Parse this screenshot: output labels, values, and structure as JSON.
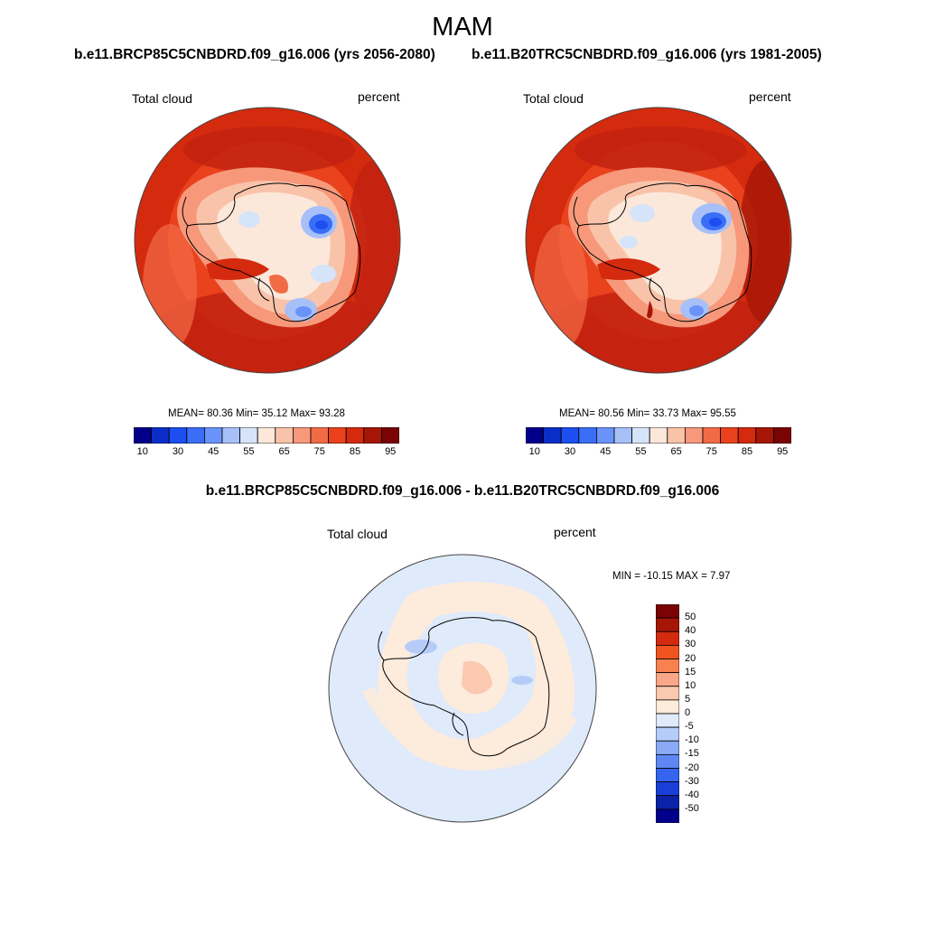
{
  "figure": {
    "title": "MAM"
  },
  "panels": [
    {
      "title": "b.e11.BRCP85C5CNBDRD.f09_g16.006 (yrs 2056-2080)",
      "variable": "Total cloud",
      "units": "percent",
      "stats_text": "MEAN=  80.36  Min=  35.12  Max=  93.28",
      "mean": 80.36,
      "min": 35.12,
      "max": 93.28
    },
    {
      "title": "b.e11.B20TRC5CNBDRD.f09_g16.006 (yrs 1981-2005)",
      "variable": "Total cloud",
      "units": "percent",
      "stats_text": "MEAN=  80.56  Min=  33.73  Max=  95.55",
      "mean": 80.56,
      "min": 33.73,
      "max": 95.55
    }
  ],
  "difference": {
    "title": "b.e11.BRCP85C5CNBDRD.f09_g16.006 - b.e11.B20TRC5CNBDRD.f09_g16.006",
    "variable": "Total cloud",
    "units": "percent",
    "stats_text": "MIN = -10.15 MAX =   7.97",
    "min": -10.15,
    "max": 7.97
  },
  "colorbar_abs": {
    "tick_labels": [
      "10",
      "30",
      "45",
      "55",
      "65",
      "75",
      "85",
      "95"
    ],
    "levels": [
      10,
      20,
      30,
      40,
      45,
      50,
      55,
      60,
      65,
      70,
      75,
      80,
      85,
      90,
      95
    ],
    "colors": [
      "#02008a",
      "#0b2ec8",
      "#1c4ef0",
      "#3a6ef7",
      "#6a93fa",
      "#a7c0f8",
      "#d6e4f9",
      "#fbe8da",
      "#f9c3aa",
      "#f7987b",
      "#f26b47",
      "#e9421d",
      "#d42a0e",
      "#a51607",
      "#7a0303"
    ]
  },
  "colorbar_diff": {
    "tick_labels": [
      "50",
      "40",
      "30",
      "20",
      "15",
      "10",
      "5",
      "0",
      "-5",
      "-10",
      "-15",
      "-20",
      "-30",
      "-40",
      "-50"
    ],
    "colors": [
      "#7a0303",
      "#a51607",
      "#d42a0e",
      "#f05520",
      "#f7814f",
      "#f9a787",
      "#fbc8b0",
      "#fdebdc",
      "#dfeafb",
      "#b6ccf8",
      "#8aaaf6",
      "#5f87f4",
      "#3564ef",
      "#1a3fd8",
      "#0a22a8",
      "#02008a"
    ]
  }
}
